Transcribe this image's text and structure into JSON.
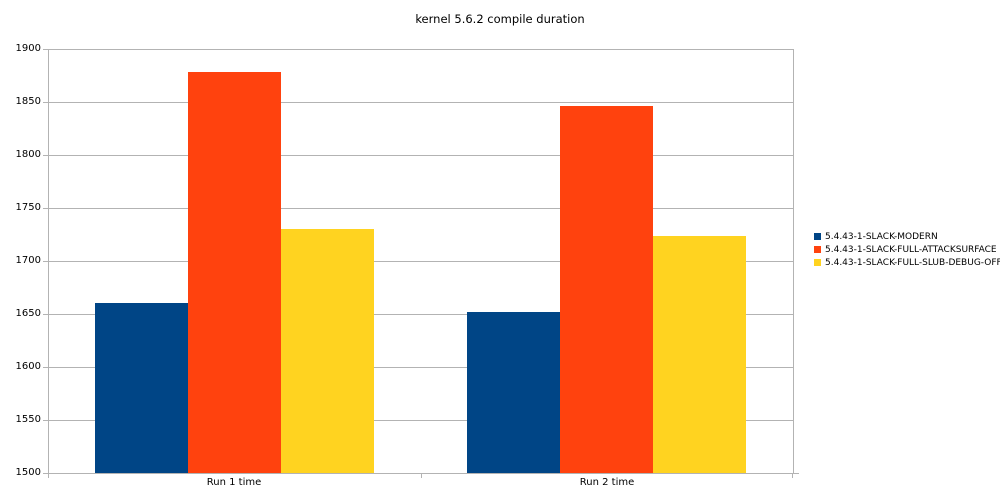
{
  "chart_data": {
    "type": "bar",
    "title": "kernel 5.6.2 compile duration",
    "categories": [
      "Run 1 time",
      "Run 2 time"
    ],
    "series": [
      {
        "name": "5.4.43-1-SLACK-MODERN",
        "color": "#004586",
        "values": [
          1660,
          1652
        ]
      },
      {
        "name": "5.4.43-1-SLACK-FULL-ATTACKSURFACE",
        "color": "#FF420E",
        "values": [
          1878,
          1846
        ]
      },
      {
        "name": "5.4.43-1-SLACK-FULL-SLUB-DEBUG-OFF",
        "color": "#FFD320",
        "values": [
          1730,
          1724
        ]
      }
    ],
    "ylim": [
      1500,
      1900
    ],
    "yticks": [
      1500,
      1550,
      1600,
      1650,
      1700,
      1750,
      1800,
      1850,
      1900
    ],
    "xlabel": "",
    "ylabel": "",
    "grid": "horizontal",
    "legend_position": "right",
    "colors": {
      "grid": "#b3b3b3",
      "axis": "#b3b3b3",
      "text": "#000000",
      "background": "#ffffff"
    }
  }
}
